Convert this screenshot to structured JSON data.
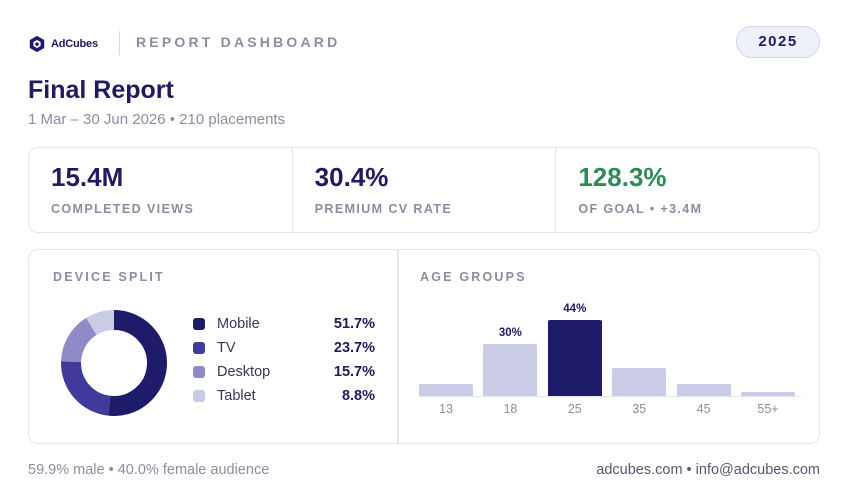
{
  "brand": {
    "name": "AdCubes",
    "logo_icon": "cube-hexagon-icon"
  },
  "header": {
    "report_label": "REPORT DASHBOARD",
    "year": "2025"
  },
  "report": {
    "title": "Final Report",
    "subtitle": "1 Mar – 30 Jun 2026 • 210 placements"
  },
  "kpis": [
    {
      "value": "15.4M",
      "label": "COMPLETED VIEWS"
    },
    {
      "value": "30.4%",
      "label": "PREMIUM CV RATE"
    },
    {
      "value": "128.3%",
      "label": "OF GOAL • +3.4M",
      "status": "positive"
    }
  ],
  "device_split": {
    "label": "DEVICE SPLIT",
    "items": [
      {
        "name": "Mobile",
        "value": "51.7%",
        "pct": 51.7,
        "color": "#1f1b6b"
      },
      {
        "name": "TV",
        "value": "23.7%",
        "pct": 23.7,
        "color": "#403a9a"
      },
      {
        "name": "Desktop",
        "value": "15.7%",
        "pct": 15.7,
        "color": "#8f8bc9"
      },
      {
        "name": "Tablet",
        "value": "8.8%",
        "pct": 8.8,
        "color": "#c9cce4"
      }
    ]
  },
  "age_groups": {
    "label": "AGE GROUPS",
    "chart_data": {
      "type": "bar",
      "categories": [
        "13",
        "18",
        "25",
        "35",
        "45",
        "55+"
      ],
      "values": [
        7,
        30,
        44,
        16,
        7,
        2
      ],
      "value_labels": [
        "",
        "30%",
        "44%",
        "",
        "",
        ""
      ],
      "highlight_index": 2,
      "colors": {
        "default": "#c9cce4",
        "highlight": "#1f1b6b"
      },
      "ylim": [
        0,
        44
      ]
    }
  },
  "footer": {
    "audience": "59.9% male • 40.0% female audience",
    "contact": "adcubes.com • info@adcubes.com"
  }
}
